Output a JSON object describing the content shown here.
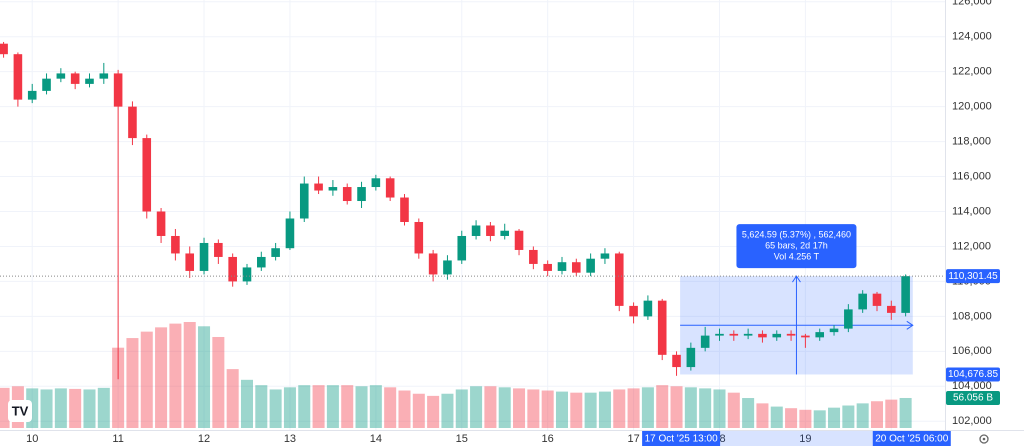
{
  "chart_data": {
    "type": "candlestick",
    "x": [
      -8,
      -4,
      0,
      4,
      8,
      12,
      16,
      20,
      24,
      28,
      32,
      36,
      40,
      44,
      48,
      52,
      56,
      60,
      64,
      68,
      72,
      76,
      80,
      84,
      88,
      92,
      96,
      100,
      104,
      108,
      112,
      116,
      120,
      124,
      128,
      132,
      136,
      140,
      144,
      148,
      152,
      156,
      160,
      164,
      168,
      172,
      176,
      180,
      184,
      188,
      192,
      196,
      200,
      204,
      208,
      212,
      216,
      220,
      224,
      228,
      232,
      236,
      240,
      244
    ],
    "open": [
      123600,
      123000,
      120400,
      120900,
      121600,
      121900,
      121300,
      121600,
      121900,
      120000,
      118200,
      114000,
      112600,
      111600,
      110600,
      112200,
      111400,
      110000,
      110800,
      111400,
      111900,
      113600,
      115600,
      115200,
      115400,
      114600,
      115400,
      115900,
      114800,
      113400,
      111600,
      110400,
      111200,
      112600,
      113200,
      112600,
      112900,
      111800,
      111000,
      110600,
      111100,
      110500,
      111300,
      111600,
      108600,
      108000,
      108900,
      105800,
      105100,
      106200,
      106900,
      107000,
      106900,
      107000,
      106800,
      107000,
      106900,
      106800,
      107100,
      107300,
      108400,
      109300,
      108600,
      108200
    ],
    "high": [
      123700,
      123100,
      121300,
      121900,
      122200,
      122000,
      121900,
      122500,
      122100,
      120300,
      118400,
      114200,
      113000,
      112000,
      112500,
      112400,
      111600,
      111000,
      111700,
      112200,
      114000,
      116000,
      116000,
      115800,
      115600,
      115700,
      116100,
      116000,
      115000,
      113600,
      111800,
      111500,
      112900,
      113500,
      113400,
      113300,
      113000,
      112000,
      111200,
      111400,
      111300,
      111600,
      111900,
      111700,
      108800,
      109200,
      109000,
      106000,
      106500,
      107400,
      107300,
      107200,
      107300,
      107200,
      107200,
      107200,
      107000,
      107300,
      107500,
      108700,
      109500,
      109400,
      108900,
      110400
    ],
    "low": [
      122800,
      120000,
      120200,
      120700,
      121400,
      121000,
      121100,
      121300,
      104400,
      117800,
      113600,
      112200,
      111200,
      110200,
      110400,
      111000,
      109700,
      109800,
      110600,
      111200,
      111800,
      113400,
      115000,
      114900,
      114400,
      114200,
      115200,
      114600,
      113200,
      111300,
      110000,
      110100,
      111000,
      112400,
      112300,
      112400,
      111500,
      110700,
      110300,
      110400,
      110300,
      110300,
      111000,
      108300,
      107600,
      107800,
      105500,
      104600,
      104900,
      106000,
      106600,
      106600,
      106700,
      106500,
      106600,
      106600,
      106200,
      106600,
      106900,
      107100,
      108200,
      108300,
      107800,
      108000
    ],
    "close": [
      123000,
      120400,
      120900,
      121600,
      121900,
      121300,
      121600,
      121900,
      120000,
      118200,
      114000,
      112600,
      111600,
      110600,
      112200,
      111400,
      110000,
      110800,
      111400,
      111900,
      113600,
      115600,
      115200,
      115400,
      114600,
      115400,
      115900,
      114800,
      113400,
      111600,
      110400,
      111200,
      112600,
      113200,
      112600,
      112900,
      111800,
      111000,
      110600,
      111100,
      110500,
      111300,
      111600,
      108600,
      108000,
      108900,
      105800,
      105100,
      106200,
      106900,
      107000,
      106900,
      107000,
      106800,
      107000,
      106900,
      106800,
      107100,
      107300,
      108400,
      109300,
      108600,
      108200,
      110301.45
    ],
    "volume": [
      75,
      78,
      74,
      72,
      74,
      73,
      72,
      75,
      150,
      168,
      180,
      188,
      195,
      198,
      190,
      170,
      110,
      90,
      80,
      72,
      76,
      80,
      80,
      80,
      80,
      78,
      80,
      76,
      70,
      64,
      60,
      64,
      72,
      78,
      78,
      76,
      74,
      72,
      70,
      68,
      66,
      66,
      68,
      72,
      74,
      76,
      80,
      78,
      76,
      74,
      72,
      66,
      56,
      46,
      40,
      37,
      34,
      33,
      38,
      42,
      46,
      50,
      53,
      56.056
    ],
    "up_color": "#089981",
    "down_color": "#f23645",
    "xlim": [
      -9,
      255
    ],
    "xticks": [
      {
        "value": 0,
        "label": "10"
      },
      {
        "value": 24,
        "label": "11"
      },
      {
        "value": 48,
        "label": "12"
      },
      {
        "value": 72,
        "label": "13"
      },
      {
        "value": 96,
        "label": "14"
      },
      {
        "value": 120,
        "label": "15"
      },
      {
        "value": 144,
        "label": "16"
      },
      {
        "value": 168,
        "label": "17"
      },
      {
        "value": 192,
        "label": "18"
      },
      {
        "value": 216,
        "label": "19"
      },
      {
        "value": 240,
        "label": "20"
      }
    ],
    "ylim": [
      101500,
      126100
    ],
    "yticks": [
      {
        "value": 102000,
        "label": "102,000"
      },
      {
        "value": 104000,
        "label": "104,000"
      },
      {
        "value": 106000,
        "label": "106,000"
      },
      {
        "value": 108000,
        "label": "108,000"
      },
      {
        "value": 110000,
        "label": "110,000"
      },
      {
        "value": 112000,
        "label": "112,000"
      },
      {
        "value": 114000,
        "label": "114,000"
      },
      {
        "value": 116000,
        "label": "116,000"
      },
      {
        "value": 118000,
        "label": "118,000"
      },
      {
        "value": 120000,
        "label": "120,000"
      },
      {
        "value": 122000,
        "label": "122,000"
      },
      {
        "value": 124000,
        "label": "124,000"
      },
      {
        "value": 126000,
        "label": "126,000"
      }
    ],
    "grid": true,
    "last_volume": {
      "value": 56.056,
      "label": "56.056 B"
    },
    "measure": {
      "start": {
        "value": 181,
        "label": "17 Oct '25  13:00"
      },
      "end": {
        "value": 246,
        "label": "20 Oct '25  06:00"
      },
      "low": {
        "value": 104676.85,
        "label": "104,676.85"
      },
      "high": {
        "value": 110301.45,
        "label": "110,301.45"
      },
      "change_text": "5,624.59 (5.37%) , 562,460",
      "bars_text": "65 bars, 2d 17h",
      "volume_text": "Vol 4.256 T"
    }
  }
}
